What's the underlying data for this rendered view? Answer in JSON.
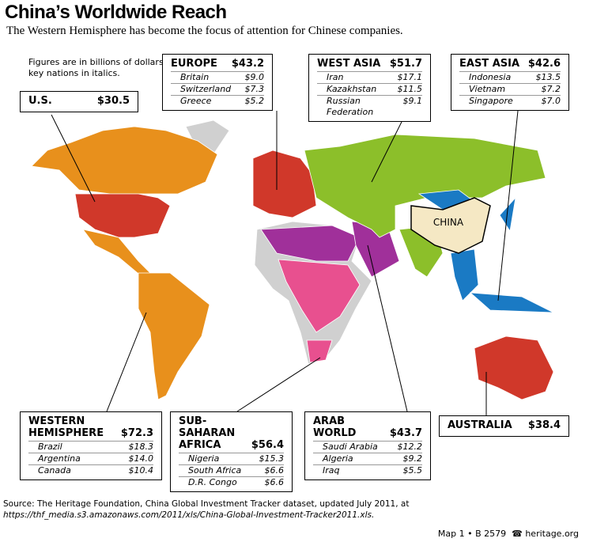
{
  "header": {
    "title": "China’s Worldwide Reach",
    "subtitle": "The Western Hemisphere has become the focus of attention for Chinese companies."
  },
  "note": [
    "Figures are in billions of dollars;",
    "key nations in italics."
  ],
  "map_label": "CHINA",
  "regions": [
    {
      "name_lines": [
        "U.S."
      ],
      "total": "$30.5"
    },
    {
      "name_lines": [
        "EUROPE"
      ],
      "total": "$43.2",
      "countries": [
        {
          "name": "Britain",
          "value": "$9.0"
        },
        {
          "name": "Switzerland",
          "value": "$7.3"
        },
        {
          "name": "Greece",
          "value": "$5.2"
        }
      ]
    },
    {
      "name_lines": [
        "WEST ASIA"
      ],
      "total": "$51.7",
      "countries": [
        {
          "name": "Iran",
          "value": "$17.1"
        },
        {
          "name": "Kazakhstan",
          "value": "$11.5"
        },
        {
          "name": "Russian Federation",
          "value": "$9.1"
        }
      ]
    },
    {
      "name_lines": [
        "EAST ASIA"
      ],
      "total": "$42.6",
      "countries": [
        {
          "name": "Indonesia",
          "value": "$13.5"
        },
        {
          "name": "Vietnam",
          "value": "$7.2"
        },
        {
          "name": "Singapore",
          "value": "$7.0"
        }
      ]
    },
    {
      "name_lines": [
        "WESTERN",
        "HEMISPHERE"
      ],
      "total": "$72.3",
      "countries": [
        {
          "name": "Brazil",
          "value": "$18.3"
        },
        {
          "name": "Argentina",
          "value": "$14.0"
        },
        {
          "name": "Canada",
          "value": "$10.4"
        }
      ]
    },
    {
      "name_lines": [
        "SUB-SAHARAN",
        "AFRICA"
      ],
      "total": "$56.4",
      "countries": [
        {
          "name": "Nigeria",
          "value": "$15.3"
        },
        {
          "name": "South Africa",
          "value": "$6.6"
        },
        {
          "name": "D.R. Congo",
          "value": "$6.6"
        }
      ]
    },
    {
      "name_lines": [
        "ARAB",
        "WORLD"
      ],
      "total": "$43.7",
      "countries": [
        {
          "name": "Saudi Arabia",
          "value": "$12.2"
        },
        {
          "name": "Algeria",
          "value": "$9.2"
        },
        {
          "name": "Iraq",
          "value": "$5.5"
        }
      ]
    },
    {
      "name_lines": [
        "AUSTRALIA"
      ],
      "total": "$38.4"
    }
  ],
  "source": {
    "label": "Source:",
    "text": "The Heritage Foundation, China Global Investment Tracker dataset, updated July 2011, at",
    "url": "https://thf_media.s3.amazonaws.com/2011/xls/China-Global-Investment-Tracker2011.xls."
  },
  "footer": {
    "map": "Map 1 • B 2579",
    "site": "heritage.org"
  }
}
